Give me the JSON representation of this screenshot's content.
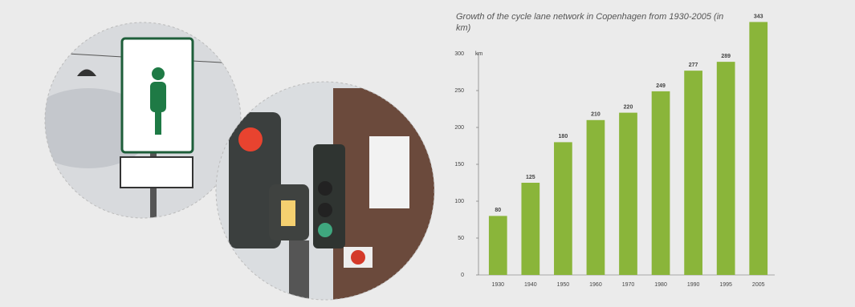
{
  "chart_data": {
    "type": "bar",
    "title": "Growth of the cycle lane network in Copenhagen from 1930-2005 (in km)",
    "y_unit": "km",
    "categories": [
      "1930",
      "1940",
      "1950",
      "1960",
      "1970",
      "1980",
      "1990",
      "1995",
      "2005"
    ],
    "values": [
      80,
      125,
      180,
      210,
      220,
      249,
      277,
      289,
      343
    ],
    "color": "#8ab53a",
    "ylim": [
      0,
      350
    ],
    "yticks": [
      0,
      50,
      100,
      150,
      200,
      250,
      300
    ],
    "grid": false
  }
}
